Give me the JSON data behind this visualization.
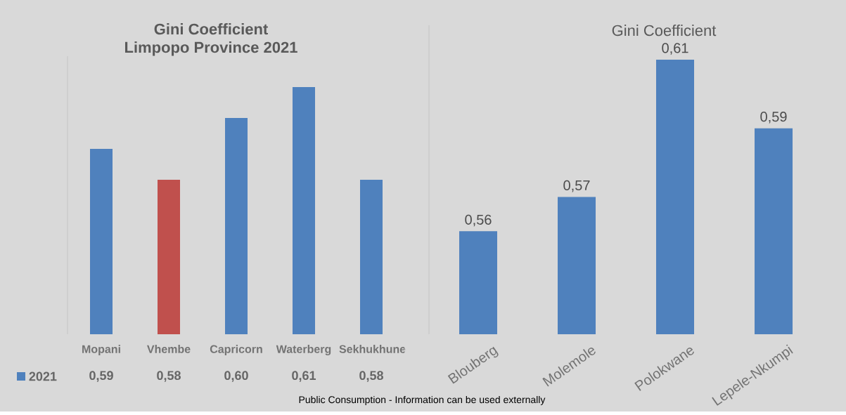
{
  "chart_data": [
    {
      "type": "bar",
      "title": "Gini Coefficient",
      "subtitle": "Limpopo Province  2021",
      "categories": [
        "Mopani",
        "Vhembe",
        "Capricorn",
        "Waterberg",
        "Sekhukhune"
      ],
      "series": [
        {
          "name": "2021",
          "color": "#4f81bd",
          "colors": [
            "#4f81bd",
            "#c0504d",
            "#4f81bd",
            "#4f81bd",
            "#4f81bd"
          ],
          "values": [
            0.59,
            0.58,
            0.6,
            0.61,
            0.58
          ],
          "value_labels": [
            "0,59",
            "0,58",
            "0,60",
            "0,61",
            "0,58"
          ]
        }
      ],
      "ylim": [
        0.53,
        0.62
      ],
      "tick_labels": "x",
      "legend": "bottom",
      "annotations": [
        "Public Consumption   - Information can be used externally"
      ]
    },
    {
      "type": "bar",
      "title": "Gini Coefficient",
      "categories": [
        "Blouberg",
        "Molemole",
        "Polokwane",
        "Lepele-Nkumpi"
      ],
      "series": [
        {
          "color": "#4f81bd",
          "values": [
            0.56,
            0.57,
            0.61,
            0.59
          ],
          "value_labels": [
            "0,56",
            "0,57",
            "0,61",
            "0,59"
          ]
        }
      ],
      "ylim": [
        0.53,
        0.62
      ],
      "tick_labels": "x"
    }
  ]
}
